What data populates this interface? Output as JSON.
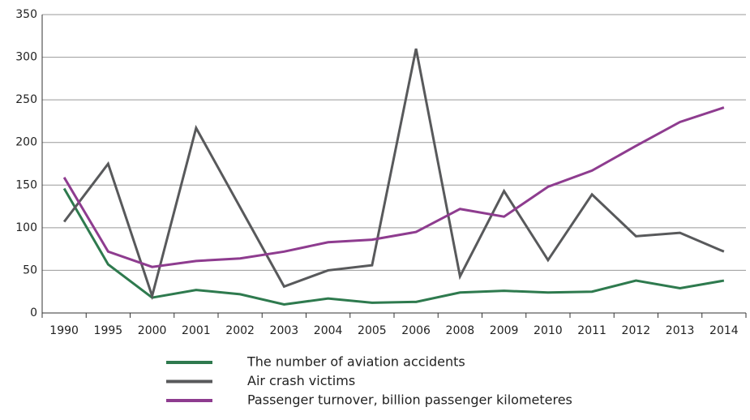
{
  "chart_data": {
    "type": "line",
    "categories": [
      "1990",
      "1995",
      "2000",
      "2001",
      "2002",
      "2003",
      "2004",
      "2005",
      "2006",
      "2008",
      "2009",
      "2010",
      "2011",
      "2012",
      "2013",
      "2014"
    ],
    "series": [
      {
        "name": "The number of aviation accidents",
        "color": "#2e7a4e",
        "values": [
          146,
          57,
          18,
          27,
          22,
          10,
          17,
          12,
          13,
          24,
          26,
          24,
          25,
          38,
          29,
          38
        ]
      },
      {
        "name": "Air crash victims",
        "color": "#58595b",
        "values": [
          107,
          175,
          20,
          217,
          124,
          31,
          50,
          56,
          310,
          43,
          143,
          62,
          139,
          90,
          94,
          72
        ]
      },
      {
        "name": "Passenger turnover, billion passenger kilometeres",
        "color": "#8e3c8f",
        "values": [
          159,
          72,
          54,
          61,
          64,
          72,
          83,
          86,
          95,
          122,
          113,
          148,
          167,
          196,
          224,
          241
        ]
      }
    ],
    "ylim": [
      0,
      350
    ],
    "yticks": [
      0,
      50,
      100,
      150,
      200,
      250,
      300,
      350
    ],
    "grid": true,
    "legend": "bottom"
  }
}
